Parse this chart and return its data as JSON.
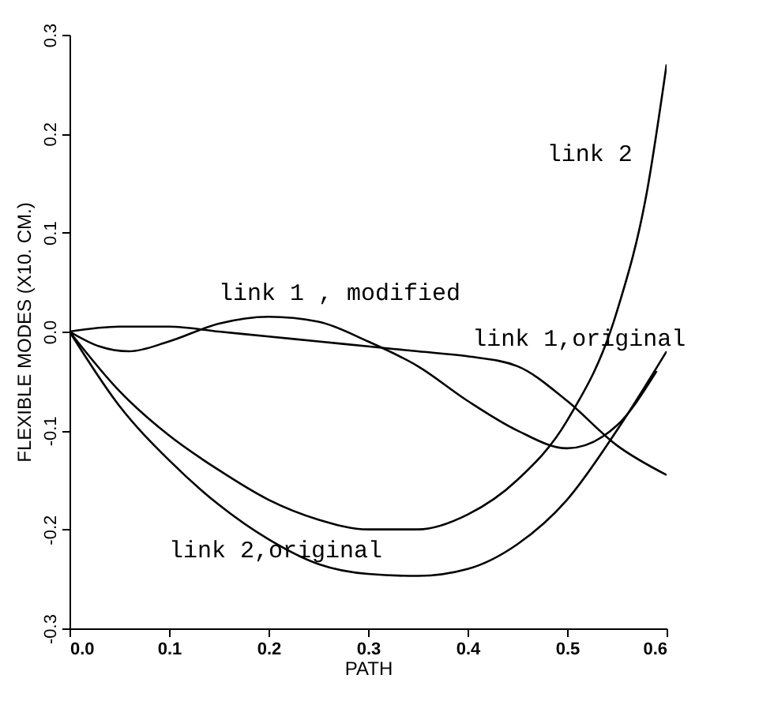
{
  "chart_data": {
    "type": "line",
    "xlabel": "PATH",
    "ylabel": "FLEXIBLE MODES (X10. CM.)",
    "xlim": [
      0,
      0.6
    ],
    "ylim": [
      -0.3,
      0.3
    ],
    "xticks": [
      {
        "value": 0,
        "label": "0.0"
      },
      0.1,
      0.2,
      0.3,
      0.4,
      0.5,
      0.6
    ],
    "yticks": [
      -0.3,
      -0.2,
      -0.1,
      {
        "value": 0,
        "label": "0.0"
      },
      0.1,
      0.2,
      0.3
    ],
    "grid": false,
    "legend": false,
    "marker": "none",
    "line_style": "solid",
    "series": [
      {
        "name": "link 2",
        "color": "#000000",
        "x": [
          0,
          0.05,
          0.1,
          0.15,
          0.2,
          0.25,
          0.3,
          0.35,
          0.4,
          0.45,
          0.5,
          0.55,
          0.58,
          0.6
        ],
        "values": [
          0,
          -0.06,
          -0.105,
          -0.14,
          -0.17,
          -0.19,
          -0.2,
          -0.2,
          -0.185,
          -0.15,
          -0.09,
          0.02,
          0.14,
          0.27
        ]
      },
      {
        "name": "link 1 , modified",
        "color": "#000000",
        "x": [
          0,
          0.03,
          0.06,
          0.1,
          0.15,
          0.2,
          0.25,
          0.3,
          0.35,
          0.4,
          0.45,
          0.5,
          0.55,
          0.59
        ],
        "values": [
          0,
          -0.015,
          -0.02,
          -0.01,
          0.008,
          0.015,
          0.01,
          -0.01,
          -0.035,
          -0.07,
          -0.1,
          -0.118,
          -0.095,
          -0.04
        ]
      },
      {
        "name": "link 1,original",
        "color": "#000000",
        "x": [
          0,
          0.05,
          0.1,
          0.15,
          0.2,
          0.25,
          0.3,
          0.35,
          0.4,
          0.45,
          0.5,
          0.55,
          0.6
        ],
        "values": [
          0,
          0.005,
          0.005,
          0,
          -0.005,
          -0.01,
          -0.015,
          -0.02,
          -0.025,
          -0.035,
          -0.07,
          -0.115,
          -0.145
        ]
      },
      {
        "name": "link 2,original",
        "color": "#000000",
        "x": [
          0,
          0.05,
          0.1,
          0.15,
          0.2,
          0.25,
          0.3,
          0.35,
          0.4,
          0.45,
          0.5,
          0.55,
          0.6
        ],
        "values": [
          0,
          -0.075,
          -0.13,
          -0.175,
          -0.21,
          -0.235,
          -0.245,
          -0.247,
          -0.24,
          -0.215,
          -0.17,
          -0.1,
          -0.02
        ]
      }
    ]
  }
}
